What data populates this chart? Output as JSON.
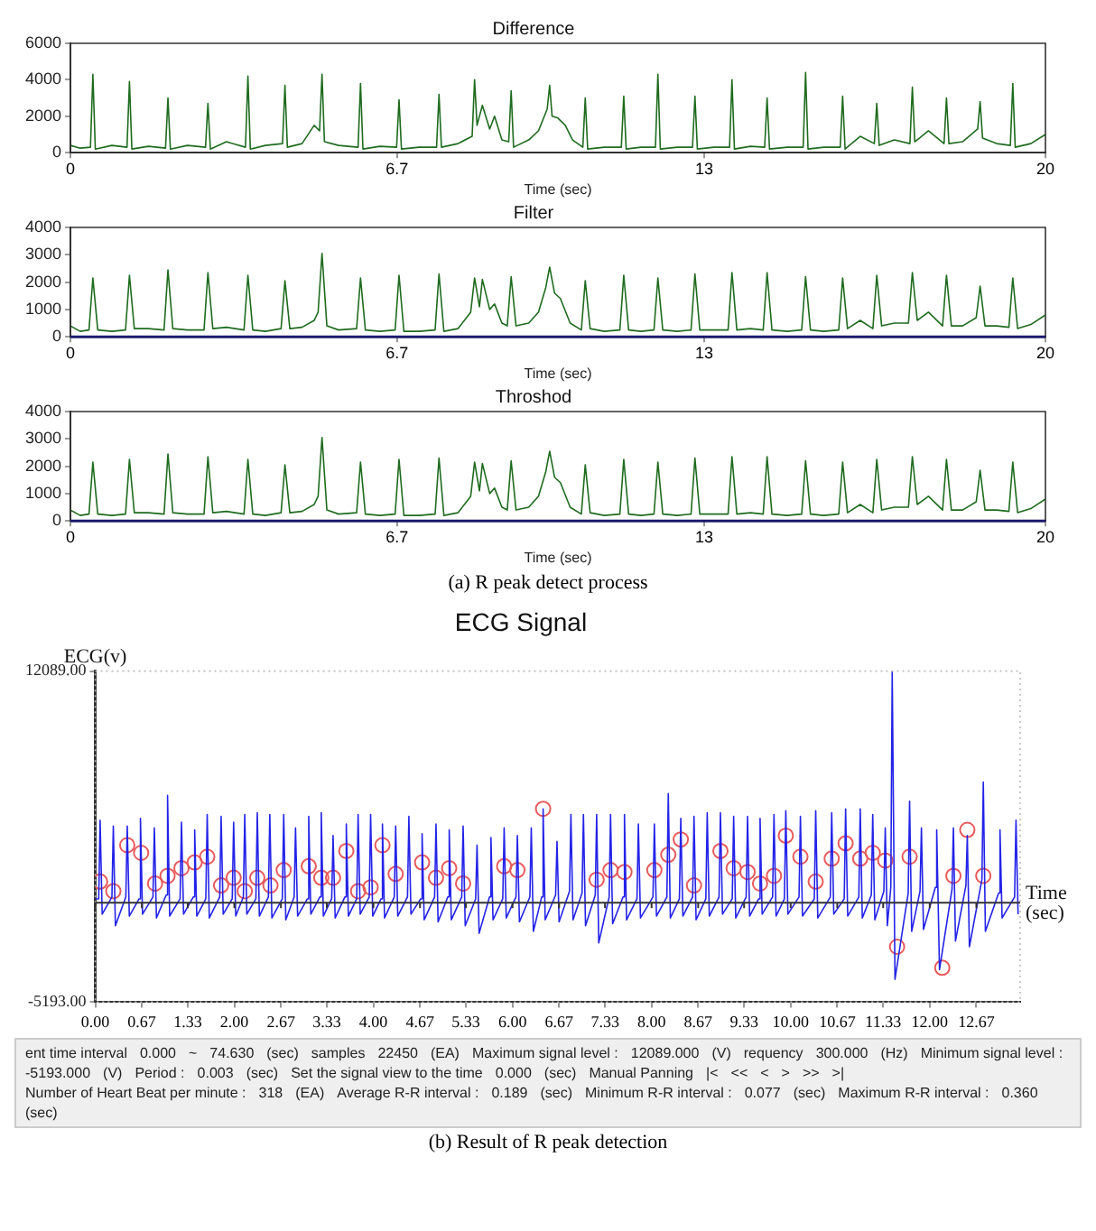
{
  "chart_data": [
    {
      "type": "line",
      "title": "Difference",
      "xlabel": "Time (sec)",
      "xlim": [
        0,
        20
      ],
      "ylim": [
        0,
        6000
      ],
      "xticks": [
        0,
        6.7,
        13,
        20
      ],
      "yticks": [
        0,
        2000,
        4000,
        6000
      ],
      "series": [
        {
          "color": "#1e6b1e",
          "x": [
            0,
            0.2,
            0.41,
            0.46,
            0.51,
            0.85,
            1.16,
            1.21,
            1.26,
            1.6,
            1.95,
            2.0,
            2.05,
            2.4,
            2.77,
            2.82,
            2.87,
            3.2,
            3.59,
            3.64,
            3.69,
            4.0,
            4.35,
            4.4,
            4.45,
            4.75,
            5.0,
            5.11,
            5.16,
            5.21,
            5.5,
            5.9,
            5.95,
            6.0,
            6.35,
            6.69,
            6.74,
            6.79,
            7.15,
            7.51,
            7.56,
            7.61,
            7.95,
            8.24,
            8.29,
            8.34,
            8.45,
            8.6,
            8.7,
            8.85,
            8.99,
            9.04,
            9.09,
            9.4,
            9.6,
            9.78,
            9.83,
            9.88,
            10.0,
            10.15,
            10.3,
            10.51,
            10.56,
            10.61,
            10.95,
            11.3,
            11.35,
            11.4,
            11.7,
            12.0,
            12.05,
            12.1,
            12.45,
            12.76,
            12.81,
            12.86,
            13.2,
            13.52,
            13.57,
            13.62,
            13.95,
            14.24,
            14.29,
            14.34,
            14.7,
            15.03,
            15.08,
            15.13,
            15.45,
            15.79,
            15.84,
            15.89,
            16.2,
            16.49,
            16.54,
            16.59,
            16.9,
            17.22,
            17.27,
            17.32,
            17.6,
            17.92,
            17.97,
            18.02,
            18.3,
            18.61,
            18.66,
            18.71,
            19.0,
            19.28,
            19.33,
            19.38,
            19.7,
            20
          ],
          "values": [
            400,
            250,
            300,
            4300,
            200,
            400,
            300,
            3900,
            200,
            350,
            250,
            3000,
            200,
            400,
            300,
            2700,
            200,
            600,
            300,
            4200,
            200,
            400,
            500,
            3700,
            300,
            500,
            1500,
            1200,
            4300,
            600,
            400,
            300,
            3800,
            200,
            350,
            300,
            2900,
            200,
            300,
            300,
            3200,
            300,
            500,
            900,
            4000,
            1500,
            2600,
            1300,
            2000,
            700,
            600,
            3400,
            300,
            700,
            1200,
            2400,
            3700,
            2000,
            1900,
            1500,
            700,
            300,
            3000,
            200,
            300,
            300,
            3100,
            200,
            300,
            300,
            4300,
            200,
            300,
            300,
            3100,
            200,
            300,
            300,
            4000,
            200,
            350,
            300,
            3000,
            200,
            300,
            300,
            4400,
            200,
            300,
            300,
            3100,
            200,
            900,
            500,
            2700,
            400,
            700,
            500,
            3600,
            600,
            1200,
            500,
            3000,
            500,
            600,
            1300,
            2800,
            800,
            500,
            400,
            3800,
            300,
            500,
            1000
          ]
        }
      ]
    },
    {
      "type": "line",
      "title": "Filter",
      "xlabel": "Time (sec)",
      "xlim": [
        0,
        20
      ],
      "ylim": [
        0,
        4000
      ],
      "xticks": [
        0,
        6.7,
        13,
        20
      ],
      "yticks": [
        0,
        1000,
        2000,
        3000,
        4000
      ],
      "ref_lines": [
        {
          "axis": "y",
          "value": 0,
          "color": "#1a1a6e"
        }
      ],
      "series": [
        {
          "color": "#1e6b1e",
          "x": [
            0,
            0.2,
            0.38,
            0.46,
            0.56,
            0.85,
            1.13,
            1.21,
            1.31,
            1.6,
            1.92,
            2.0,
            2.1,
            2.4,
            2.74,
            2.82,
            2.92,
            3.2,
            3.56,
            3.64,
            3.74,
            4.0,
            4.32,
            4.4,
            4.5,
            4.75,
            5.0,
            5.08,
            5.16,
            5.26,
            5.5,
            5.87,
            5.95,
            6.05,
            6.35,
            6.66,
            6.74,
            6.84,
            7.15,
            7.48,
            7.56,
            7.66,
            7.95,
            8.21,
            8.29,
            8.39,
            8.45,
            8.6,
            8.7,
            8.85,
            8.96,
            9.04,
            9.14,
            9.4,
            9.6,
            9.75,
            9.83,
            9.93,
            10.05,
            10.25,
            10.48,
            10.56,
            10.66,
            10.95,
            11.27,
            11.35,
            11.45,
            11.7,
            11.97,
            12.05,
            12.15,
            12.45,
            12.73,
            12.81,
            12.91,
            13.2,
            13.49,
            13.57,
            13.67,
            13.95,
            14.21,
            14.29,
            14.39,
            14.7,
            15.0,
            15.08,
            15.18,
            15.45,
            15.76,
            15.84,
            15.94,
            16.2,
            16.46,
            16.54,
            16.64,
            16.9,
            17.19,
            17.27,
            17.37,
            17.6,
            17.89,
            17.97,
            18.07,
            18.3,
            18.58,
            18.66,
            18.76,
            19.0,
            19.25,
            19.33,
            19.43,
            19.7,
            20
          ],
          "values": [
            400,
            200,
            250,
            2150,
            250,
            200,
            250,
            2250,
            300,
            300,
            250,
            2450,
            300,
            250,
            250,
            2350,
            300,
            350,
            250,
            2250,
            250,
            200,
            300,
            2050,
            300,
            350,
            600,
            900,
            3050,
            400,
            250,
            300,
            2150,
            250,
            200,
            250,
            2250,
            200,
            200,
            250,
            2300,
            200,
            300,
            900,
            2150,
            1100,
            2100,
            1000,
            1200,
            500,
            400,
            2200,
            400,
            500,
            900,
            1800,
            2550,
            1600,
            1400,
            500,
            250,
            2050,
            300,
            200,
            250,
            2250,
            250,
            200,
            250,
            2150,
            250,
            200,
            250,
            2300,
            250,
            250,
            250,
            2350,
            250,
            300,
            250,
            2350,
            250,
            200,
            250,
            2200,
            250,
            200,
            250,
            2150,
            300,
            600,
            300,
            2250,
            400,
            500,
            500,
            2350,
            600,
            900,
            400,
            2250,
            400,
            400,
            700,
            1850,
            400,
            400,
            350,
            2150,
            300,
            450,
            800
          ]
        }
      ]
    },
    {
      "type": "line",
      "title": "Throshod",
      "xlabel": "Time (sec)",
      "xlim": [
        0,
        20
      ],
      "ylim": [
        0,
        4000
      ],
      "xticks": [
        0,
        6.7,
        13,
        20
      ],
      "yticks": [
        0,
        1000,
        2000,
        3000,
        4000
      ],
      "ref_lines": [
        {
          "axis": "y",
          "value": 0,
          "color": "#1a1a6e"
        }
      ],
      "annotations": [
        "(a) R peak detect process"
      ],
      "series": [
        {
          "color": "#1e6b1e",
          "x": [
            0,
            0.2,
            0.38,
            0.46,
            0.56,
            0.85,
            1.13,
            1.21,
            1.31,
            1.6,
            1.92,
            2.0,
            2.1,
            2.4,
            2.74,
            2.82,
            2.92,
            3.2,
            3.56,
            3.64,
            3.74,
            4.0,
            4.32,
            4.4,
            4.5,
            4.75,
            5.0,
            5.08,
            5.16,
            5.26,
            5.5,
            5.87,
            5.95,
            6.05,
            6.35,
            6.66,
            6.74,
            6.84,
            7.15,
            7.48,
            7.56,
            7.66,
            7.95,
            8.21,
            8.29,
            8.39,
            8.45,
            8.6,
            8.7,
            8.85,
            8.96,
            9.04,
            9.14,
            9.4,
            9.6,
            9.75,
            9.83,
            9.93,
            10.05,
            10.25,
            10.48,
            10.56,
            10.66,
            10.95,
            11.27,
            11.35,
            11.45,
            11.7,
            11.97,
            12.05,
            12.15,
            12.45,
            12.73,
            12.81,
            12.91,
            13.2,
            13.49,
            13.57,
            13.67,
            13.95,
            14.21,
            14.29,
            14.39,
            14.7,
            15.0,
            15.08,
            15.18,
            15.45,
            15.76,
            15.84,
            15.94,
            16.2,
            16.46,
            16.54,
            16.64,
            16.9,
            17.19,
            17.27,
            17.37,
            17.6,
            17.89,
            17.97,
            18.07,
            18.3,
            18.58,
            18.66,
            18.76,
            19.0,
            19.25,
            19.33,
            19.43,
            19.7,
            20
          ],
          "values": [
            400,
            200,
            250,
            2150,
            250,
            200,
            250,
            2250,
            300,
            300,
            250,
            2450,
            300,
            250,
            250,
            2350,
            300,
            350,
            250,
            2250,
            250,
            200,
            300,
            2050,
            300,
            350,
            600,
            900,
            3050,
            400,
            250,
            300,
            2150,
            250,
            200,
            250,
            2250,
            200,
            200,
            250,
            2300,
            200,
            300,
            900,
            2150,
            1100,
            2100,
            1000,
            1200,
            500,
            400,
            2200,
            400,
            500,
            900,
            1800,
            2550,
            1600,
            1400,
            500,
            250,
            2050,
            300,
            200,
            250,
            2250,
            250,
            200,
            250,
            2150,
            250,
            200,
            250,
            2300,
            250,
            250,
            250,
            2350,
            250,
            300,
            250,
            2350,
            250,
            200,
            250,
            2200,
            250,
            200,
            250,
            2150,
            300,
            600,
            300,
            2250,
            400,
            500,
            500,
            2350,
            600,
            900,
            400,
            2250,
            400,
            400,
            700,
            1850,
            400,
            400,
            350,
            2150,
            300,
            450,
            800
          ]
        }
      ]
    },
    {
      "type": "line",
      "title": "ECG Signal",
      "xlabel": "Time (sec)",
      "ylabel": "ECG(v)",
      "xlim": [
        0,
        13.3
      ],
      "ylim": [
        -5193,
        12089
      ],
      "xticks": [
        {
          "value": 0,
          "label": "0.00"
        },
        0.67,
        1.33,
        {
          "value": 2,
          "label": "2.00"
        },
        2.67,
        3.33,
        {
          "value": 4,
          "label": "4.00"
        },
        4.67,
        5.33,
        {
          "value": 6,
          "label": "6.00"
        },
        6.67,
        7.33,
        {
          "value": 8,
          "label": "8.00"
        },
        8.67,
        9.33,
        {
          "value": 10,
          "label": "10.00"
        },
        10.67,
        11.33,
        {
          "value": 12,
          "label": "12.00"
        },
        12.67
      ],
      "yticks": [
        {
          "value": -5193,
          "label": "-5193.00"
        },
        {
          "value": 12089,
          "label": "12089.00"
        }
      ],
      "series": [
        {
          "type": "line",
          "color": "#2323e8",
          "x": [
            0,
            0.05,
            0.07,
            0.1,
            0.24,
            0.26,
            0.29,
            0.44,
            0.46,
            0.49,
            0.63,
            0.65,
            0.68,
            0.83,
            0.85,
            0.88,
            1.02,
            1.04,
            1.07,
            1.22,
            1.24,
            1.27,
            1.41,
            1.43,
            1.46,
            1.59,
            1.61,
            1.64,
            1.79,
            1.81,
            1.84,
            1.97,
            1.99,
            2.02,
            2.13,
            2.15,
            2.18,
            2.31,
            2.33,
            2.36,
            2.49,
            2.51,
            2.54,
            2.69,
            2.71,
            2.74,
            2.86,
            2.88,
            2.91,
            3.05,
            3.07,
            3.1,
            3.23,
            3.25,
            3.28,
            3.4,
            3.42,
            3.45,
            3.59,
            3.61,
            3.64,
            3.76,
            3.78,
            3.81,
            3.94,
            3.96,
            3.99,
            4.11,
            4.13,
            4.16,
            4.3,
            4.32,
            4.35,
            4.49,
            4.51,
            4.54,
            4.68,
            4.7,
            4.73,
            4.88,
            4.9,
            4.93,
            5.07,
            5.09,
            5.12,
            5.27,
            5.29,
            5.32,
            5.47,
            5.49,
            5.52,
            5.67,
            5.69,
            5.72,
            5.86,
            5.88,
            5.91,
            6.05,
            6.07,
            6.1,
            6.25,
            6.27,
            6.3,
            6.42,
            6.44,
            6.47,
            6.62,
            6.64,
            6.67,
            6.82,
            6.84,
            6.87,
            7.0,
            7.02,
            7.05,
            7.19,
            7.21,
            7.24,
            7.39,
            7.41,
            7.44,
            7.59,
            7.61,
            7.64,
            7.79,
            7.81,
            7.84,
            8.02,
            8.04,
            8.07,
            8.22,
            8.24,
            8.27,
            8.4,
            8.42,
            8.45,
            8.59,
            8.61,
            8.64,
            8.78,
            8.8,
            8.83,
            8.97,
            8.99,
            9.02,
            9.16,
            9.18,
            9.21,
            9.36,
            9.38,
            9.41,
            9.54,
            9.56,
            9.59,
            9.74,
            9.76,
            9.79,
            9.91,
            9.93,
            9.96,
            10.12,
            10.14,
            10.17,
            10.34,
            10.36,
            10.39,
            10.57,
            10.59,
            10.62,
            10.77,
            10.79,
            10.82,
            10.98,
            11.0,
            11.03,
            11.16,
            11.18,
            11.21,
            11.34,
            11.36,
            11.39,
            11.44,
            11.46,
            11.5,
            11.69,
            11.71,
            11.74,
            11.86,
            11.88,
            11.91,
            12.08,
            12.1,
            12.14,
            12.32,
            12.34,
            12.37,
            12.52,
            12.54,
            12.57,
            12.75,
            12.77,
            12.8,
            12.99,
            13.01,
            13.04,
            13.22,
            13.24,
            13.27
          ],
          "values": [
            200,
            200,
            4300,
            -600,
            300,
            4000,
            -1200,
            300,
            4000,
            -700,
            200,
            4400,
            -600,
            300,
            3900,
            -800,
            400,
            5600,
            -700,
            200,
            4200,
            -600,
            300,
            3800,
            -700,
            200,
            4600,
            -800,
            300,
            4500,
            -600,
            200,
            4200,
            -700,
            300,
            4600,
            -600,
            200,
            4700,
            -700,
            300,
            4600,
            -800,
            200,
            4600,
            -900,
            300,
            3900,
            -700,
            200,
            4500,
            -600,
            300,
            4700,
            -700,
            200,
            3500,
            -800,
            300,
            4100,
            -700,
            200,
            4600,
            -600,
            300,
            4600,
            -700,
            200,
            4100,
            -800,
            300,
            4000,
            -700,
            300,
            4500,
            -600,
            200,
            3600,
            -900,
            300,
            4100,
            -1000,
            300,
            3800,
            -900,
            300,
            4000,
            -1200,
            200,
            3000,
            -1600,
            300,
            3400,
            -900,
            200,
            3900,
            -800,
            300,
            3500,
            -1000,
            300,
            3900,
            -1500,
            300,
            4900,
            -900,
            400,
            3200,
            -1000,
            600,
            4600,
            -900,
            500,
            4600,
            -1200,
            400,
            4600,
            -2100,
            300,
            4600,
            -1100,
            300,
            4600,
            -900,
            200,
            4100,
            -800,
            300,
            4100,
            -700,
            300,
            5700,
            -800,
            200,
            4400,
            -700,
            300,
            4500,
            -900,
            200,
            4700,
            -700,
            300,
            4700,
            -600,
            200,
            4500,
            -800,
            300,
            4500,
            -700,
            200,
            4400,
            -600,
            300,
            4600,
            -700,
            200,
            4800,
            -600,
            300,
            4500,
            -700,
            200,
            4800,
            -800,
            300,
            4700,
            -600,
            200,
            4900,
            -700,
            300,
            4900,
            -800,
            400,
            4600,
            -900,
            600,
            3900,
            -1200,
            800,
            12089,
            -4000,
            500,
            5300,
            -1500,
            600,
            3900,
            -1400,
            800,
            3800,
            -3500,
            700,
            3900,
            -2000,
            900,
            3500,
            -2300,
            1200,
            6300,
            -1500,
            500,
            3800,
            -800,
            300,
            4300,
            -600
          ]
        },
        {
          "type": "scatter",
          "color": "#e85a5a",
          "marker": "circle",
          "x": [
            0.07,
            0.26,
            0.46,
            0.66,
            0.86,
            1.04,
            1.24,
            1.43,
            1.61,
            1.81,
            1.99,
            2.15,
            2.33,
            2.52,
            2.71,
            3.07,
            3.25,
            3.42,
            3.61,
            3.78,
            3.96,
            4.13,
            4.32,
            4.7,
            4.9,
            5.09,
            5.29,
            5.88,
            6.07,
            6.44,
            7.21,
            7.41,
            7.61,
            8.04,
            8.24,
            8.42,
            8.61,
            8.99,
            9.18,
            9.38,
            9.56,
            9.76,
            9.93,
            10.14,
            10.36,
            10.59,
            10.79,
            11.0,
            11.18,
            11.36,
            11.53,
            11.71,
            12.18,
            12.34,
            12.54,
            12.77
          ],
          "values": [
            1100,
            600,
            3000,
            2600,
            1000,
            1400,
            1800,
            2100,
            2400,
            900,
            1300,
            600,
            1300,
            900,
            1700,
            1900,
            1300,
            1300,
            2700,
            600,
            800,
            3000,
            1500,
            2100,
            1300,
            1800,
            1000,
            1900,
            1700,
            4900,
            1200,
            1700,
            1600,
            1700,
            2500,
            3300,
            900,
            2700,
            1800,
            1600,
            1000,
            1400,
            3500,
            2400,
            1100,
            2300,
            3100,
            2300,
            2600,
            2200,
            -2300,
            2400,
            -3400,
            1400,
            3800,
            1400
          ]
        }
      ]
    },
    {
      "type": "other",
      "annotations": [
        "ent time interval",
        "0.000",
        "~",
        "74.630",
        "(sec)",
        "samples",
        "22450",
        "(EA)",
        "Maximum signal level :",
        "12089.000",
        "(V)",
        "requency",
        "300.000",
        "(Hz)",
        "Minimum signal level :",
        "-5193.000",
        "(V)",
        "Period :",
        "0.003",
        "(sec)",
        "Set the signal view to the time",
        "0.000",
        "(sec)",
        "Manual Panning",
        "|<",
        "<<",
        "<",
        ">",
        ">>",
        ">|",
        "Number of Heart Beat per minute :",
        "318",
        "(EA)",
        "Average R-R interval :",
        "0.189",
        "(sec)",
        "Minimum R-R interval :",
        "0.077",
        "(sec)",
        "Maximum R-R interval :",
        "0.360",
        "(sec)",
        "(b) Result of R peak detection"
      ]
    }
  ]
}
